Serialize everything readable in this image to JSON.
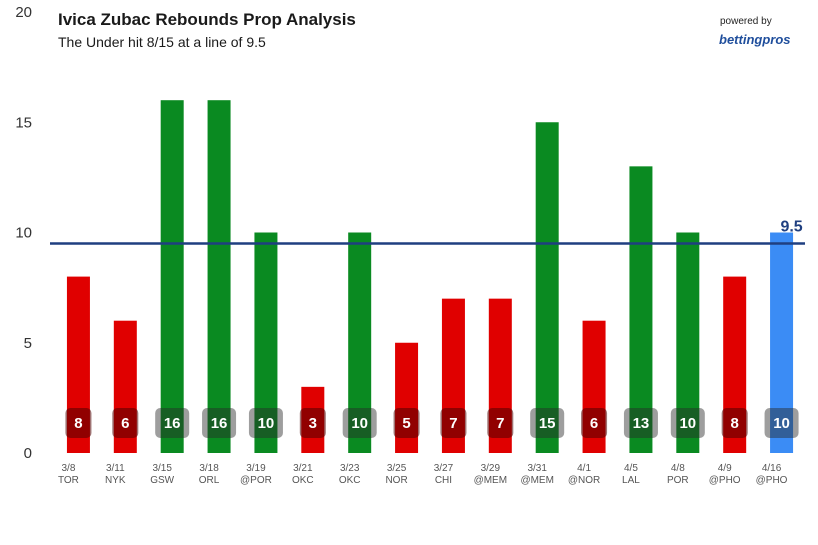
{
  "brand": {
    "powered_by": "powered by",
    "name": "bettingpros"
  },
  "chart_data": {
    "type": "bar",
    "title": "Ivica Zubac Rebounds Prop Analysis",
    "subtitle": "The Under hit 8/15 at a line of 9.5",
    "categories": [
      {
        "date": "3/8",
        "opp": "TOR"
      },
      {
        "date": "3/11",
        "opp": "NYK"
      },
      {
        "date": "3/15",
        "opp": "GSW"
      },
      {
        "date": "3/18",
        "opp": "ORL"
      },
      {
        "date": "3/19",
        "opp": "@POR"
      },
      {
        "date": "3/21",
        "opp": "OKC"
      },
      {
        "date": "3/23",
        "opp": "OKC"
      },
      {
        "date": "3/25",
        "opp": "NOR"
      },
      {
        "date": "3/27",
        "opp": "CHI"
      },
      {
        "date": "3/29",
        "opp": "@MEM"
      },
      {
        "date": "3/31",
        "opp": "@MEM"
      },
      {
        "date": "4/1",
        "opp": "@NOR"
      },
      {
        "date": "4/5",
        "opp": "LAL"
      },
      {
        "date": "4/8",
        "opp": "POR"
      },
      {
        "date": "4/9",
        "opp": "@PHO"
      },
      {
        "date": "4/16",
        "opp": "@PHO"
      }
    ],
    "values": [
      8,
      6,
      16,
      16,
      10,
      3,
      10,
      5,
      7,
      7,
      15,
      6,
      13,
      10,
      8,
      10
    ],
    "statuses": [
      "under",
      "under",
      "over",
      "over",
      "over",
      "under",
      "over",
      "under",
      "under",
      "under",
      "over",
      "under",
      "over",
      "over",
      "under",
      "upcoming"
    ],
    "line": 9.5,
    "line_label": "9.5",
    "ylim": [
      0,
      20
    ],
    "yticks": [
      0,
      5,
      10,
      15,
      20
    ],
    "colors": {
      "over": "#0a8a21",
      "under": "#e00000",
      "upcoming": "#3b8cf5",
      "line": "#1f3f80"
    }
  }
}
